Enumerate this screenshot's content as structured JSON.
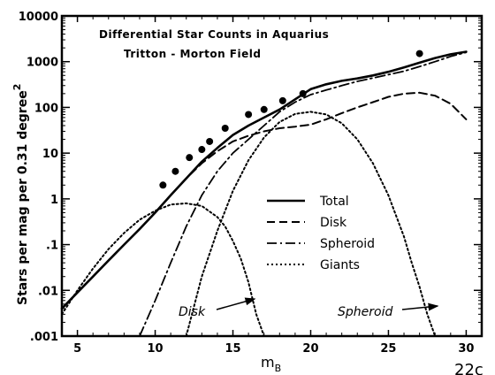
{
  "chart_data": {
    "type": "line",
    "title": "Differential Star Counts in Aquarius",
    "subtitle": "Tritton - Morton Field",
    "xlabel": "m",
    "xlabel_sub": "B",
    "ylabel": "Stars per mag per 0.31 degree",
    "ylabel_sup": "2",
    "xlim": [
      4,
      31
    ],
    "ylim": [
      0.001,
      10000
    ],
    "yscale": "log",
    "x_ticks": [
      5,
      10,
      15,
      20,
      25,
      30
    ],
    "x_tick_labels": [
      "5",
      "10",
      "15",
      "20",
      "25",
      "30"
    ],
    "y_ticks": [
      0.001,
      0.01,
      0.1,
      1,
      10,
      100,
      1000,
      10000
    ],
    "y_tick_labels": [
      ".001",
      ".01",
      ".1",
      "1",
      "10",
      "100",
      "1000",
      "10000"
    ],
    "grid": false,
    "legend_position": "center-right",
    "series": [
      {
        "name": "Total",
        "style": "solid",
        "x": [
          4,
          5,
          6,
          7,
          8,
          9,
          10,
          11,
          12,
          13,
          14,
          15,
          16,
          17,
          18,
          19,
          20,
          21,
          22,
          23,
          24,
          25,
          26,
          27,
          28,
          29,
          30
        ],
        "y": [
          0.004,
          0.009,
          0.02,
          0.045,
          0.1,
          0.22,
          0.5,
          1.2,
          2.8,
          6.5,
          13,
          25,
          40,
          60,
          90,
          150,
          250,
          320,
          380,
          430,
          500,
          600,
          750,
          950,
          1200,
          1450,
          1650
        ]
      },
      {
        "name": "Disk",
        "style": "dashed",
        "x": [
          4,
          5,
          6,
          7,
          8,
          9,
          10,
          11,
          12,
          13,
          14,
          15,
          16,
          17,
          18,
          19,
          20,
          21,
          22,
          23,
          24,
          25,
          26,
          27,
          28,
          29,
          30
        ],
        "y": [
          0.004,
          0.009,
          0.02,
          0.045,
          0.1,
          0.22,
          0.5,
          1.2,
          2.8,
          6,
          11,
          18,
          24,
          30,
          35,
          38,
          42,
          55,
          75,
          100,
          130,
          170,
          200,
          210,
          180,
          120,
          55
        ]
      },
      {
        "name": "Spheroid",
        "style": "dashdot",
        "x": [
          9,
          10,
          11,
          12,
          13,
          14,
          15,
          16,
          17,
          18,
          19,
          20,
          21,
          22,
          23,
          24,
          25,
          26,
          27,
          28,
          29,
          30
        ],
        "y": [
          0.001,
          0.006,
          0.04,
          0.25,
          1.2,
          4,
          10,
          20,
          40,
          80,
          130,
          190,
          240,
          300,
          370,
          440,
          520,
          620,
          780,
          1000,
          1300,
          1600
        ]
      },
      {
        "name": "Giants",
        "style": "dotted",
        "x": [
          4,
          5,
          6,
          7,
          8,
          9,
          10,
          11,
          12,
          13,
          14,
          14.5,
          15,
          15.5,
          16,
          16.5,
          17
        ],
        "y": [
          0.003,
          0.01,
          0.03,
          0.08,
          0.18,
          0.35,
          0.55,
          0.75,
          0.8,
          0.7,
          0.4,
          0.25,
          0.12,
          0.05,
          0.015,
          0.003,
          0.001
        ]
      },
      {
        "name": "Giants (Spheroid)",
        "style": "dotted",
        "x": [
          12,
          13,
          14,
          15,
          16,
          17,
          18,
          19,
          20,
          21,
          22,
          23,
          24,
          25,
          26,
          26.5,
          27,
          27.5,
          28
        ],
        "y": [
          0.001,
          0.02,
          0.2,
          1.5,
          7,
          22,
          48,
          72,
          80,
          70,
          45,
          20,
          6,
          1.2,
          0.15,
          0.04,
          0.012,
          0.003,
          0.001
        ]
      },
      {
        "name": "Observed counts",
        "style": "points",
        "x": [
          10.5,
          11.3,
          12.2,
          13,
          13.5,
          14.5,
          16,
          17,
          18.2,
          19.5,
          27
        ],
        "y": [
          2,
          4,
          8,
          12,
          18,
          35,
          70,
          90,
          140,
          200,
          1500
        ]
      }
    ],
    "legend": [
      "Total",
      "Disk",
      "Spheroid",
      "Giants"
    ],
    "annotations": [
      {
        "text": "Disk",
        "arrow_to_series": "Giants"
      },
      {
        "text": "Spheroid",
        "arrow_to_series": "Giants (Spheroid)"
      }
    ],
    "corner_label": "22c"
  }
}
